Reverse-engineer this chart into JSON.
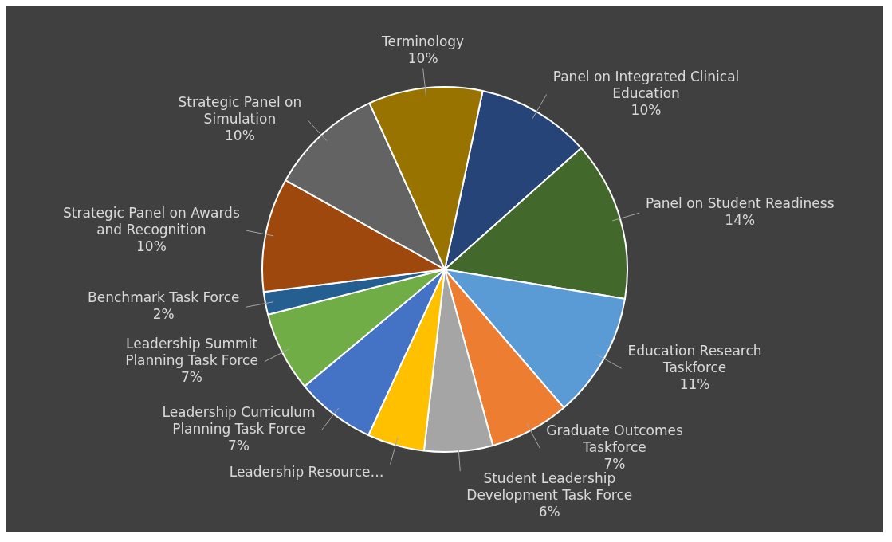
{
  "chart_data": {
    "type": "pie",
    "categories": [
      "Panel on Integrated Clinical Education",
      "Panel on Student Readiness",
      "Education Research Taskforce",
      "Graduate Outcomes Taskforce",
      "Student Leadership Development Task Force",
      "Leadership Resource…",
      "Leadership Curriculum Planning Task Force",
      "Leadership Summit Planning Task Force",
      "Benchmark Task Force",
      "Strategic Panel on Awards and Recognition",
      "Strategic Panel on Simulation",
      "Terminology"
    ],
    "values": [
      10,
      14,
      11,
      7,
      6,
      5,
      7,
      7,
      2,
      10,
      10,
      10
    ],
    "value_labels": [
      "10%",
      "14%",
      "11%",
      "7%",
      "6%",
      null,
      "7%",
      "7%",
      "2%",
      "10%",
      "10%",
      "10%"
    ],
    "colors": [
      "#264478",
      "#43682b",
      "#5b9bd5",
      "#ed7d31",
      "#a5a5a5",
      "#ffc000",
      "#4472c4",
      "#70ad47",
      "#255e91",
      "#9e480e",
      "#636363",
      "#997300"
    ],
    "legend": false
  }
}
